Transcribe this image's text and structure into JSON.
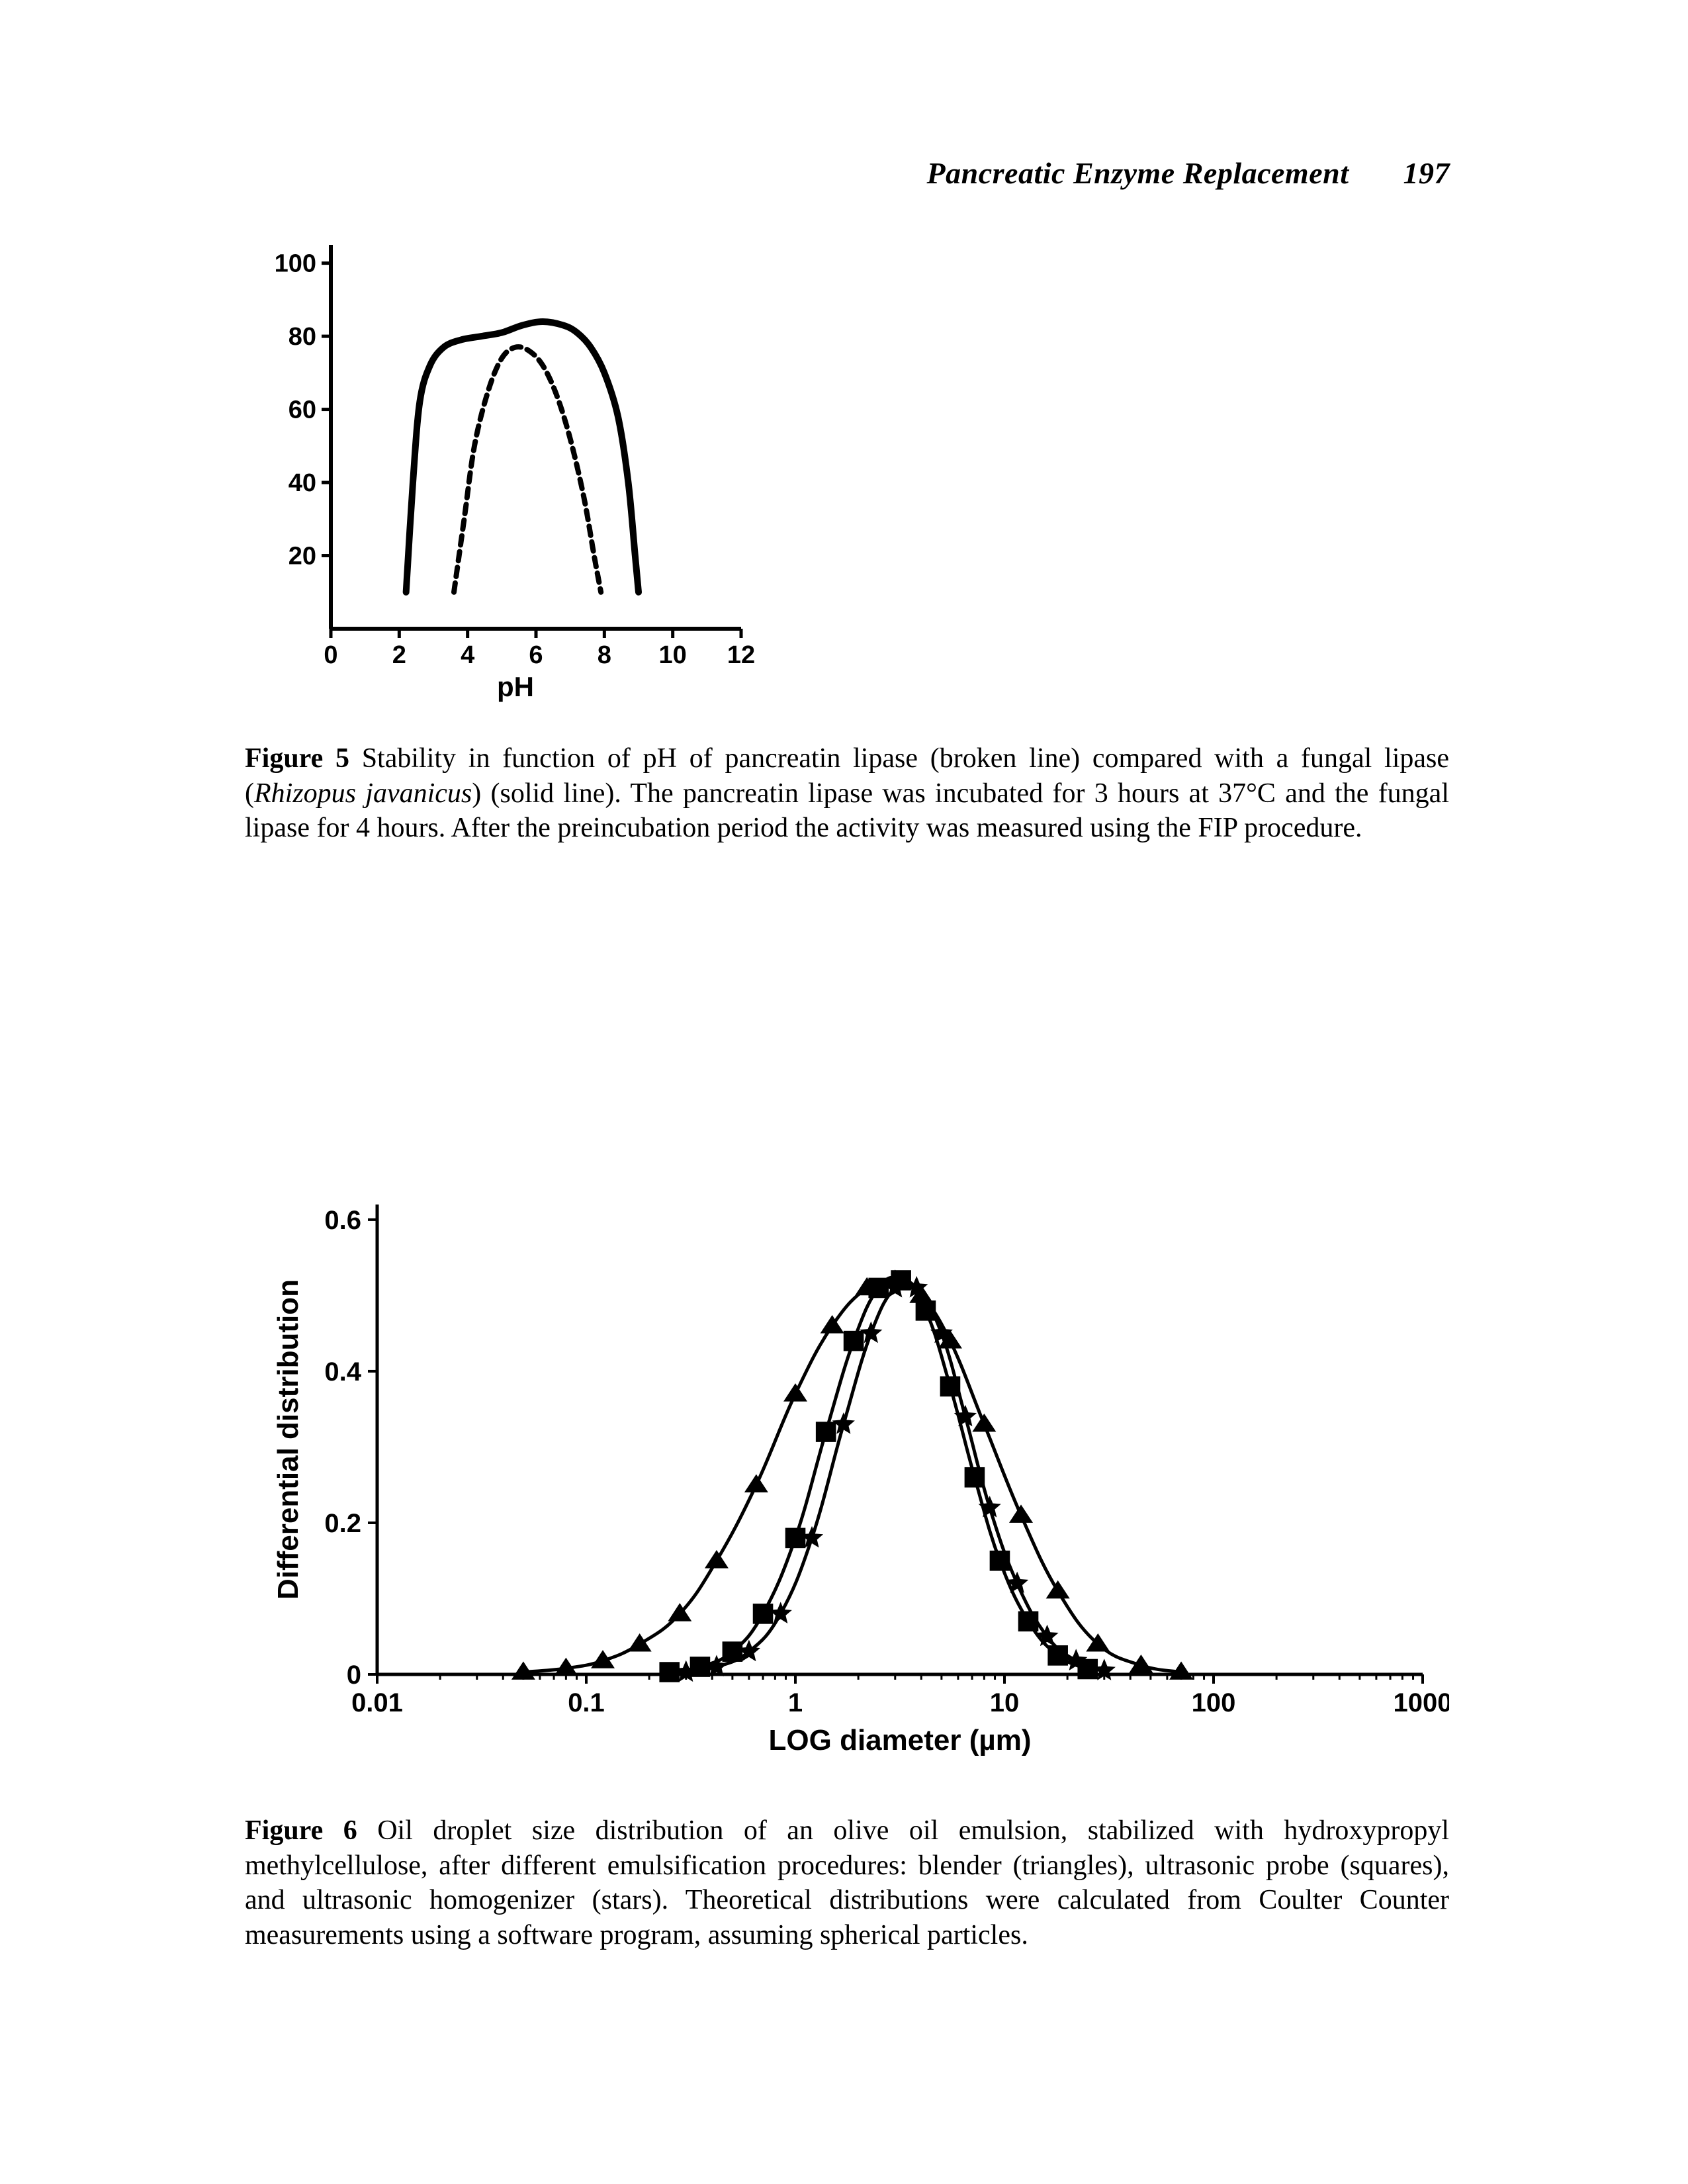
{
  "header": {
    "running_title": "Pancreatic Enzyme Replacement",
    "page_number": "197"
  },
  "figure5": {
    "type": "line",
    "xlabel": "pH",
    "x_ticks": [
      0,
      2,
      4,
      6,
      8,
      10,
      12
    ],
    "y_ticks": [
      20,
      40,
      60,
      80,
      100
    ],
    "xlim": [
      0,
      12
    ],
    "ylim": [
      0,
      105
    ],
    "axis_color": "#000000",
    "axis_width": 6,
    "tick_length": 14,
    "tick_fontsize": 38,
    "label_fontsize": 42,
    "background_color": "#ffffff",
    "series": {
      "solid": {
        "label": "fungal lipase (Rhizopus javanicus)",
        "dash": "none",
        "color": "#000000",
        "width": 10,
        "points": [
          [
            2.2,
            10
          ],
          [
            2.4,
            40
          ],
          [
            2.6,
            62
          ],
          [
            2.9,
            72
          ],
          [
            3.3,
            77
          ],
          [
            3.8,
            79
          ],
          [
            4.4,
            80
          ],
          [
            5.0,
            81
          ],
          [
            5.6,
            83
          ],
          [
            6.2,
            84
          ],
          [
            6.8,
            83
          ],
          [
            7.2,
            81
          ],
          [
            7.6,
            77
          ],
          [
            8.0,
            70
          ],
          [
            8.4,
            58
          ],
          [
            8.7,
            40
          ],
          [
            8.9,
            20
          ],
          [
            9.0,
            10
          ]
        ]
      },
      "broken": {
        "label": "pancreatin lipase",
        "dash": "14,10",
        "color": "#000000",
        "width": 8,
        "points": [
          [
            3.6,
            10
          ],
          [
            3.9,
            30
          ],
          [
            4.2,
            50
          ],
          [
            4.6,
            65
          ],
          [
            5.0,
            74
          ],
          [
            5.4,
            77
          ],
          [
            5.8,
            76
          ],
          [
            6.2,
            72
          ],
          [
            6.6,
            64
          ],
          [
            7.0,
            52
          ],
          [
            7.4,
            36
          ],
          [
            7.7,
            20
          ],
          [
            7.9,
            10
          ]
        ]
      }
    },
    "caption": {
      "lead": "Figure 5",
      "body_before_italic": "   Stability in function of pH of pancreatin lipase (broken line) compared with a fungal lipase (",
      "italic": "Rhizopus javanicus",
      "body_after_italic": ") (solid line). The pancreatin lipase was incubated for 3 hours at 37°C and the fungal lipase for 4 hours. After the preincubation period the activity was measured using the FIP procedure."
    }
  },
  "figure6": {
    "type": "line",
    "xlabel": "LOG diameter (µm)",
    "ylabel": "Differential distribution",
    "x_scale": "log",
    "x_ticks": [
      0.01,
      0.1,
      1,
      10,
      100,
      1000
    ],
    "x_tick_labels": [
      "0.01",
      "0.1",
      "1",
      "10",
      "100",
      "1000"
    ],
    "y_ticks": [
      0,
      0.2,
      0.4,
      0.6
    ],
    "xlim": [
      0.01,
      1000
    ],
    "ylim": [
      0,
      0.62
    ],
    "axis_color": "#000000",
    "axis_width": 5,
    "tick_length": 14,
    "tick_fontsize": 40,
    "label_fontsize": 44,
    "background_color": "#ffffff",
    "marker_size": 18,
    "line_width": 5,
    "series": {
      "triangles": {
        "label": "blender",
        "marker": "triangle",
        "color": "#000000",
        "points_xy": [
          [
            0.05,
            0.003
          ],
          [
            0.08,
            0.008
          ],
          [
            0.12,
            0.018
          ],
          [
            0.18,
            0.04
          ],
          [
            0.28,
            0.08
          ],
          [
            0.42,
            0.15
          ],
          [
            0.65,
            0.25
          ],
          [
            1.0,
            0.37
          ],
          [
            1.5,
            0.46
          ],
          [
            2.2,
            0.51
          ],
          [
            3.0,
            0.52
          ],
          [
            4.0,
            0.5
          ],
          [
            5.5,
            0.44
          ],
          [
            8.0,
            0.33
          ],
          [
            12.0,
            0.21
          ],
          [
            18.0,
            0.11
          ],
          [
            28.0,
            0.04
          ],
          [
            45.0,
            0.012
          ],
          [
            70.0,
            0.003
          ]
        ]
      },
      "squares": {
        "label": "ultrasonic probe",
        "marker": "square",
        "color": "#000000",
        "points_xy": [
          [
            0.25,
            0.003
          ],
          [
            0.35,
            0.01
          ],
          [
            0.5,
            0.03
          ],
          [
            0.7,
            0.08
          ],
          [
            1.0,
            0.18
          ],
          [
            1.4,
            0.32
          ],
          [
            1.9,
            0.44
          ],
          [
            2.5,
            0.51
          ],
          [
            3.2,
            0.52
          ],
          [
            4.2,
            0.48
          ],
          [
            5.5,
            0.38
          ],
          [
            7.2,
            0.26
          ],
          [
            9.5,
            0.15
          ],
          [
            13.0,
            0.07
          ],
          [
            18.0,
            0.025
          ],
          [
            25.0,
            0.007
          ]
        ]
      },
      "stars": {
        "label": "ultrasonic homogenizer",
        "marker": "star",
        "color": "#000000",
        "points_xy": [
          [
            0.3,
            0.003
          ],
          [
            0.42,
            0.01
          ],
          [
            0.6,
            0.03
          ],
          [
            0.85,
            0.08
          ],
          [
            1.2,
            0.18
          ],
          [
            1.7,
            0.33
          ],
          [
            2.3,
            0.45
          ],
          [
            3.0,
            0.51
          ],
          [
            3.8,
            0.51
          ],
          [
            5.0,
            0.45
          ],
          [
            6.5,
            0.34
          ],
          [
            8.5,
            0.22
          ],
          [
            11.5,
            0.12
          ],
          [
            16.0,
            0.05
          ],
          [
            22.0,
            0.018
          ],
          [
            30.0,
            0.005
          ]
        ]
      }
    },
    "caption": {
      "lead": "Figure 6",
      "body": "   Oil droplet size distribution of an olive oil emulsion, stabilized with hydroxypropyl methylcellulose, after different emulsification procedures: blender (triangles), ultrasonic probe (squares), and ultrasonic homogenizer (stars). Theoretical distributions were calculated from Coulter Counter measurements using a software program, assuming spherical particles."
    }
  }
}
